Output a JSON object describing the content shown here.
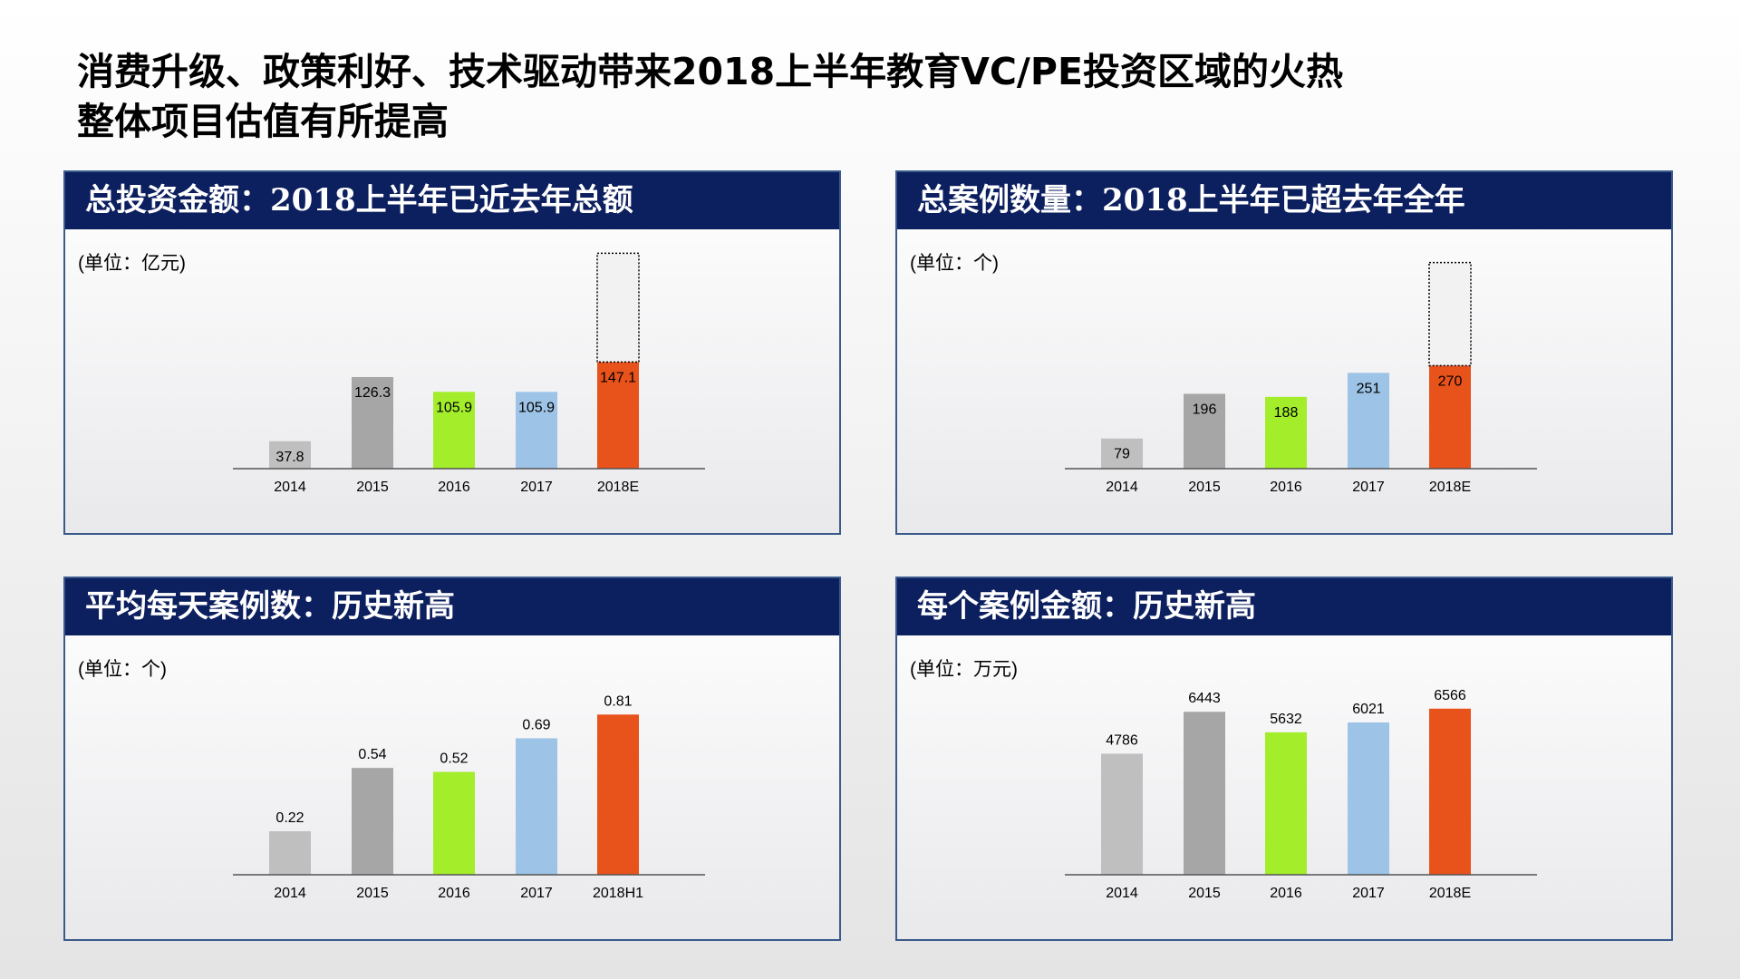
{
  "page": {
    "title_line1": "消费升级、政策利好、技术驱动带来2018上半年教育VC/PE投资区域的火热",
    "title_line2": "整体项目估值有所提高"
  },
  "chart_data": [
    {
      "type": "bar",
      "title": "总投资金额：2018上半年已近去年总额",
      "unit": "(单位：亿元)",
      "categories": [
        "2014",
        "2015",
        "2016",
        "2017",
        "2018E"
      ],
      "values": [
        37.8,
        126.3,
        105.9,
        105.9,
        147.1
      ],
      "labels": [
        "37.8",
        "126.3",
        "105.9",
        "105.9",
        "147.1"
      ],
      "label_position": "inside",
      "colors": [
        "#bfbfbf",
        "#a6a6a6",
        "#a3ed2b",
        "#9dc3e6",
        "#e8521b"
      ],
      "projection": {
        "category": "2018E",
        "extra_value": 150,
        "style": "dotted-outline",
        "color": "#f2f2f2"
      },
      "ymax": 300
    },
    {
      "type": "bar",
      "title": "总案例数量：2018上半年已超去年全年",
      "unit": "(单位：个)",
      "categories": [
        "2014",
        "2015",
        "2016",
        "2017",
        "2018E"
      ],
      "values": [
        79,
        196,
        188,
        251,
        270
      ],
      "labels": [
        "79",
        "196",
        "188",
        "251",
        "270"
      ],
      "label_position": "inside",
      "colors": [
        "#bfbfbf",
        "#a6a6a6",
        "#a3ed2b",
        "#9dc3e6",
        "#e8521b"
      ],
      "projection": {
        "category": "2018E",
        "extra_value": 270,
        "style": "dotted-outline",
        "color": "#f2f2f2"
      },
      "ymax": 570
    },
    {
      "type": "bar",
      "title": "平均每天案例数：历史新高",
      "unit": "(单位：个)",
      "categories": [
        "2014",
        "2015",
        "2016",
        "2017",
        "2018H1"
      ],
      "values": [
        0.22,
        0.54,
        0.52,
        0.69,
        0.81
      ],
      "labels": [
        "0.22",
        "0.54",
        "0.52",
        "0.69",
        "0.81"
      ],
      "label_position": "above",
      "colors": [
        "#bfbfbf",
        "#a6a6a6",
        "#a3ed2b",
        "#9dc3e6",
        "#e8521b"
      ],
      "ymax": 1.1
    },
    {
      "type": "bar",
      "title": "每个案例金额：历史新高",
      "unit": "(单位：万元)",
      "categories": [
        "2014",
        "2015",
        "2016",
        "2017",
        "2018E"
      ],
      "values": [
        4786,
        6443,
        5632,
        6021,
        6566
      ],
      "labels": [
        "4786",
        "6443",
        "5632",
        "6021",
        "6566"
      ],
      "label_position": "above",
      "colors": [
        "#bfbfbf",
        "#a6a6a6",
        "#a3ed2b",
        "#9dc3e6",
        "#e8521b"
      ],
      "ymax": 8600
    }
  ]
}
